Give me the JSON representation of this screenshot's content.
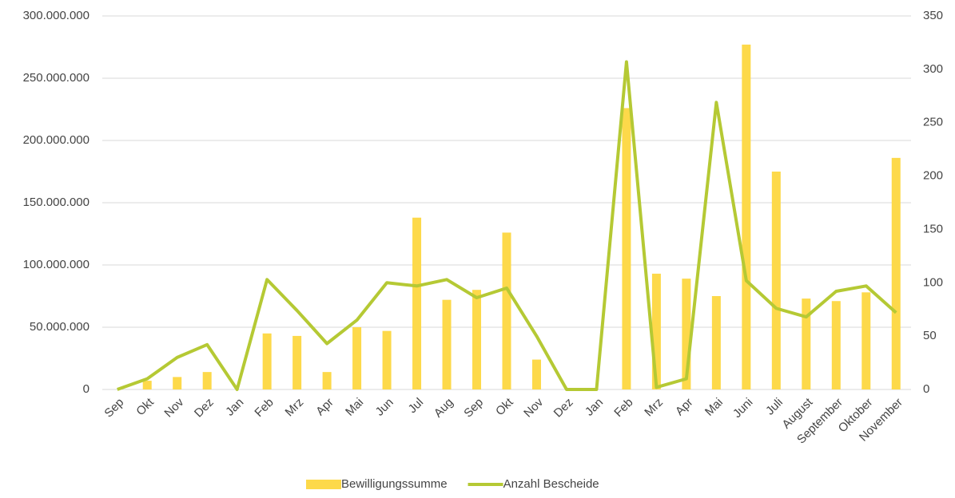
{
  "chart_data": {
    "type": "bar-line",
    "categories": [
      "Sep",
      "Okt",
      "Nov",
      "Dez",
      "Jan",
      "Feb",
      "Mrz",
      "Apr",
      "Mai",
      "Jun",
      "Jul",
      "Aug",
      "Sep",
      "Okt",
      "Nov",
      "Dez",
      "Jan",
      "Feb",
      "Mrz",
      "Apr",
      "Mai",
      "Juni",
      "Juli",
      "August",
      "September",
      "Oktober",
      "November"
    ],
    "series": [
      {
        "name": "Bewilligungssumme",
        "type": "bar",
        "color": "#fdd94a",
        "values": [
          0,
          7000000,
          10000000,
          14000000,
          0,
          45000000,
          43000000,
          14000000,
          50000000,
          47000000,
          138000000,
          72000000,
          80000000,
          126000000,
          24000000,
          0,
          0,
          226000000,
          93000000,
          89000000,
          75000000,
          277000000,
          175000000,
          73000000,
          71000000,
          78000000,
          186000000
        ]
      },
      {
        "name": "Anzahl Bescheide",
        "type": "line",
        "axis": "y2",
        "color": "#b5c934",
        "values": [
          0,
          10,
          30,
          42,
          0,
          103,
          74,
          43,
          65,
          100,
          97,
          103,
          86,
          95,
          50,
          0,
          0,
          307,
          2,
          10,
          269,
          102,
          76,
          68,
          92,
          97,
          72
        ]
      }
    ],
    "ylim": [
      0,
      300000000
    ],
    "yticks": [
      0,
      {
        "value": 50000000,
        "label": "50.000.000"
      },
      {
        "value": 100000000,
        "label": "100.000.000"
      },
      {
        "value": 150000000,
        "label": "150.000.000"
      },
      {
        "value": 200000000,
        "label": "200.000.000"
      },
      {
        "value": 250000000,
        "label": "250.000.000"
      },
      {
        "value": 300000000,
        "label": "300.000.000"
      }
    ],
    "y2lim": [
      0,
      350
    ],
    "y2ticks": [
      0,
      50,
      100,
      150,
      200,
      250,
      300,
      350
    ],
    "grid": true,
    "legend": "bottom"
  }
}
